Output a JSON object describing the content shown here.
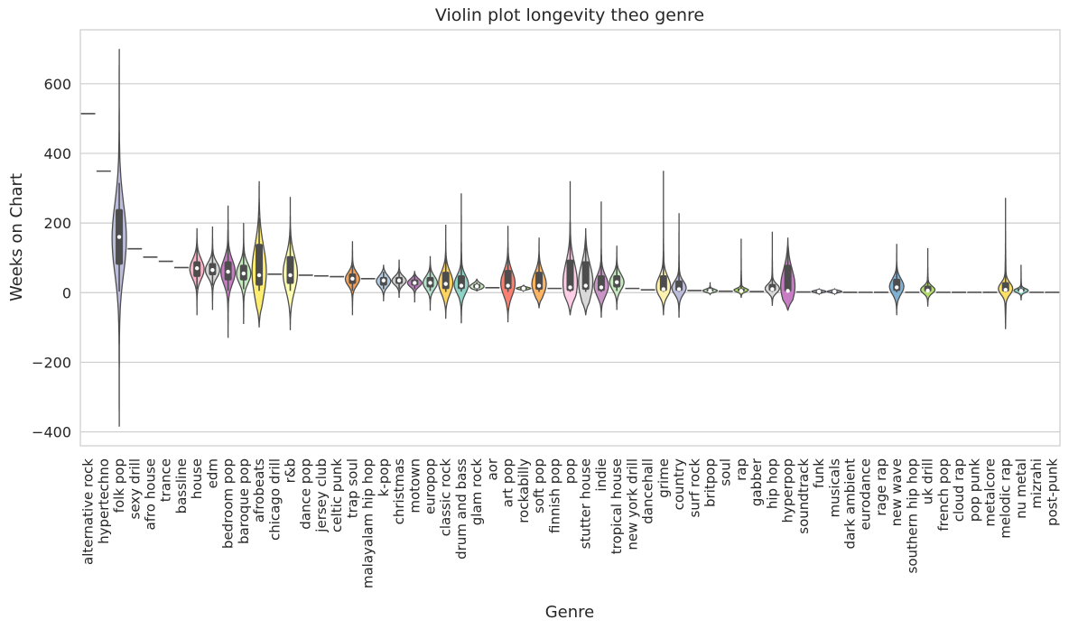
{
  "chart_data": {
    "type": "violin",
    "title": "Violin plot longevity theo genre",
    "xlabel": "Genre",
    "ylabel": "Weeks on Chart",
    "ylim": [
      -440,
      755
    ],
    "yticks": [
      -400,
      -200,
      0,
      200,
      400,
      600
    ],
    "grid": "horizontal",
    "legend": "none",
    "genres": [
      {
        "name": "alternative rock",
        "min": 514,
        "q1": 514,
        "median": 514,
        "q3": 514,
        "max": 514,
        "color": "#66c2a5"
      },
      {
        "name": "hypertechno",
        "min": 349,
        "q1": 349,
        "median": 349,
        "q3": 349,
        "max": 349,
        "color": "#fc8d62"
      },
      {
        "name": "folk pop",
        "min": 3,
        "q1": 80,
        "median": 160,
        "q3": 240,
        "max": 315,
        "lower": -385,
        "upper": 700,
        "color": "#bcbddc"
      },
      {
        "name": "sexy drill",
        "min": 126,
        "q1": 126,
        "median": 126,
        "q3": 126,
        "max": 126,
        "color": "#e78ac3"
      },
      {
        "name": "afro house",
        "min": 102,
        "q1": 102,
        "median": 102,
        "q3": 102,
        "max": 102,
        "color": "#a6d854"
      },
      {
        "name": "trance",
        "min": 90,
        "q1": 90,
        "median": 90,
        "q3": 90,
        "max": 90,
        "color": "#ffd92f"
      },
      {
        "name": "bassline",
        "min": 72,
        "q1": 72,
        "median": 72,
        "q3": 72,
        "max": 72,
        "color": "#e5c494"
      },
      {
        "name": "house",
        "min": 10,
        "q1": 45,
        "median": 70,
        "q3": 90,
        "max": 130,
        "lower": -65,
        "upper": 185,
        "color": "#fbb4c7"
      },
      {
        "name": "edm",
        "min": 20,
        "q1": 50,
        "median": 65,
        "q3": 85,
        "max": 120,
        "lower": -50,
        "upper": 190,
        "color": "#d9d9d9"
      },
      {
        "name": "bedroom pop",
        "min": 5,
        "q1": 35,
        "median": 60,
        "q3": 90,
        "max": 180,
        "lower": -130,
        "upper": 250,
        "color": "#c77cc4"
      },
      {
        "name": "baroque pop",
        "min": 10,
        "q1": 35,
        "median": 55,
        "q3": 80,
        "max": 140,
        "lower": -90,
        "upper": 200,
        "color": "#c7e9c0"
      },
      {
        "name": "afrobeats",
        "min": 5,
        "q1": 20,
        "median": 50,
        "q3": 140,
        "max": 215,
        "lower": -100,
        "upper": 320,
        "color": "#ffed6f"
      },
      {
        "name": "chicago drill",
        "min": 53,
        "q1": 53,
        "median": 53,
        "q3": 53,
        "max": 53,
        "color": "#e5c494"
      },
      {
        "name": "r&b",
        "min": 5,
        "q1": 25,
        "median": 50,
        "q3": 105,
        "max": 165,
        "lower": -108,
        "upper": 275,
        "color": "#ffffb3"
      },
      {
        "name": "dance pop",
        "min": 50,
        "q1": 50,
        "median": 50,
        "q3": 50,
        "max": 50,
        "color": "#b3b3b3"
      },
      {
        "name": "jersey club",
        "min": 48,
        "q1": 48,
        "median": 48,
        "q3": 48,
        "max": 48,
        "color": "#8dd3c7"
      },
      {
        "name": "celtic punk",
        "min": 46,
        "q1": 46,
        "median": 46,
        "q3": 46,
        "max": 46,
        "color": "#bebada"
      },
      {
        "name": "trap soul",
        "min": 5,
        "q1": 25,
        "median": 40,
        "q3": 55,
        "max": 80,
        "lower": -65,
        "upper": 148,
        "color": "#f4a259"
      },
      {
        "name": "malayalam hip hop",
        "min": 40,
        "q1": 40,
        "median": 40,
        "q3": 40,
        "max": 40,
        "color": "#80b1d3"
      },
      {
        "name": "k-pop",
        "min": 10,
        "q1": 20,
        "median": 35,
        "q3": 45,
        "max": 60,
        "lower": -25,
        "upper": 80,
        "color": "#b3cde3"
      },
      {
        "name": "christmas",
        "min": 10,
        "q1": 25,
        "median": 35,
        "q3": 45,
        "max": 60,
        "lower": -15,
        "upper": 95,
        "color": "#cccccc"
      },
      {
        "name": "motown",
        "min": 10,
        "q1": 20,
        "median": 28,
        "q3": 38,
        "max": 50,
        "lower": -28,
        "upper": 62,
        "color": "#bc80bd"
      },
      {
        "name": "europop",
        "min": 5,
        "q1": 15,
        "median": 28,
        "q3": 45,
        "max": 80,
        "lower": -52,
        "upper": 105,
        "color": "#b3e2cd"
      },
      {
        "name": "classic rock",
        "min": 2,
        "q1": 10,
        "median": 25,
        "q3": 60,
        "max": 115,
        "lower": -75,
        "upper": 195,
        "color": "#fdd462"
      },
      {
        "name": "drum and bass",
        "min": 3,
        "q1": 10,
        "median": 20,
        "q3": 50,
        "max": 110,
        "lower": -88,
        "upper": 285,
        "color": "#8dd3c7"
      },
      {
        "name": "glam rock",
        "min": 5,
        "q1": 12,
        "median": 18,
        "q3": 25,
        "max": 30,
        "lower": 5,
        "upper": 40,
        "color": "#ccebc5"
      },
      {
        "name": "aor",
        "min": 14,
        "q1": 14,
        "median": 14,
        "q3": 14,
        "max": 14,
        "color": "#e5d8bd"
      },
      {
        "name": "art pop",
        "min": 2,
        "q1": 10,
        "median": 20,
        "q3": 65,
        "max": 130,
        "lower": -85,
        "upper": 192,
        "color": "#fb8072"
      },
      {
        "name": "rockabilly",
        "min": 8,
        "q1": 10,
        "median": 12,
        "q3": 15,
        "max": 18,
        "lower": 5,
        "upper": 22,
        "color": "#b3de69"
      },
      {
        "name": "soft pop",
        "min": 2,
        "q1": 8,
        "median": 20,
        "q3": 60,
        "max": 110,
        "lower": -45,
        "upper": 158,
        "color": "#fdb462"
      },
      {
        "name": "finnish pop",
        "min": 12,
        "q1": 12,
        "median": 12,
        "q3": 12,
        "max": 12,
        "color": "#d9d9d9"
      },
      {
        "name": "pop",
        "min": 2,
        "q1": 5,
        "median": 15,
        "q3": 95,
        "max": 200,
        "lower": -65,
        "upper": 320,
        "color": "#fccde5"
      },
      {
        "name": "stutter house",
        "min": 2,
        "q1": 8,
        "median": 20,
        "q3": 90,
        "max": 150,
        "lower": -65,
        "upper": 185,
        "color": "#d9d9d9"
      },
      {
        "name": "indie",
        "min": 2,
        "q1": 5,
        "median": 15,
        "q3": 50,
        "max": 110,
        "lower": -72,
        "upper": 262,
        "color": "#c994c7"
      },
      {
        "name": "tropical house",
        "min": 5,
        "q1": 15,
        "median": 30,
        "q3": 50,
        "max": 90,
        "lower": -50,
        "upper": 135,
        "color": "#c7e9c0"
      },
      {
        "name": "new york drill",
        "min": 12,
        "q1": 12,
        "median": 12,
        "q3": 12,
        "max": 12,
        "color": "#bc80bd"
      },
      {
        "name": "dancehall",
        "min": 8,
        "q1": 8,
        "median": 8,
        "q3": 8,
        "max": 8,
        "color": "#ccebc5"
      },
      {
        "name": "grime",
        "min": 2,
        "q1": 5,
        "median": 10,
        "q3": 50,
        "max": 120,
        "lower": -65,
        "upper": 350,
        "color": "#fff2ae"
      },
      {
        "name": "country",
        "min": 2,
        "q1": 5,
        "median": 10,
        "q3": 35,
        "max": 70,
        "lower": -72,
        "upper": 228,
        "color": "#bcbddc"
      },
      {
        "name": "surf rock",
        "min": 6,
        "q1": 6,
        "median": 6,
        "q3": 6,
        "max": 6,
        "color": "#9ecae1"
      },
      {
        "name": "britpop",
        "min": 2,
        "q1": 3,
        "median": 5,
        "q3": 10,
        "max": 20,
        "lower": -5,
        "upper": 30,
        "color": "#c7e9c0"
      },
      {
        "name": "soul",
        "min": 4,
        "q1": 4,
        "median": 4,
        "q3": 4,
        "max": 4,
        "color": "#8dd3c7"
      },
      {
        "name": "rap",
        "min": 1,
        "q1": 3,
        "median": 5,
        "q3": 12,
        "max": 25,
        "lower": -15,
        "upper": 155,
        "color": "#b3de69"
      },
      {
        "name": "gabber",
        "min": 3,
        "q1": 3,
        "median": 3,
        "q3": 3,
        "max": 3,
        "color": "#fdb462"
      },
      {
        "name": "hip hop",
        "min": 2,
        "q1": 5,
        "median": 10,
        "q3": 25,
        "max": 50,
        "lower": -38,
        "upper": 175,
        "color": "#d9d9d9"
      },
      {
        "name": "hyperpop",
        "min": 1,
        "q1": 3,
        "median": 5,
        "q3": 80,
        "max": 130,
        "lower": -52,
        "upper": 158,
        "color": "#c77cc4"
      },
      {
        "name": "soundtrack",
        "min": 2,
        "q1": 2,
        "median": 2,
        "q3": 2,
        "max": 2,
        "color": "#e5c494"
      },
      {
        "name": "funk",
        "min": 1,
        "q1": 2,
        "median": 3,
        "q3": 5,
        "max": 8,
        "lower": -4,
        "upper": 10,
        "color": "#bebada"
      },
      {
        "name": "musicals",
        "min": 1,
        "q1": 2,
        "median": 3,
        "q3": 5,
        "max": 8,
        "lower": -4,
        "upper": 10,
        "color": "#bebada"
      },
      {
        "name": "dark ambient",
        "min": 1,
        "q1": 1,
        "median": 1,
        "q3": 1,
        "max": 1,
        "color": "#80b1d3"
      },
      {
        "name": "eurodance",
        "min": 1,
        "q1": 1,
        "median": 1,
        "q3": 1,
        "max": 1,
        "color": "#fb8072"
      },
      {
        "name": "rage rap",
        "min": 1,
        "q1": 1,
        "median": 1,
        "q3": 1,
        "max": 1,
        "color": "#8dd3c7"
      },
      {
        "name": "new wave",
        "min": 1,
        "q1": 5,
        "median": 15,
        "q3": 40,
        "max": 80,
        "lower": -65,
        "upper": 140,
        "color": "#80b1d3"
      },
      {
        "name": "southern hip hop",
        "min": 1,
        "q1": 1,
        "median": 1,
        "q3": 1,
        "max": 1,
        "color": "#fccde5"
      },
      {
        "name": "uk drill",
        "min": 1,
        "q1": 3,
        "median": 6,
        "q3": 20,
        "max": 45,
        "lower": -40,
        "upper": 128,
        "color": "#b3de69"
      },
      {
        "name": "french pop",
        "min": 1,
        "q1": 1,
        "median": 1,
        "q3": 1,
        "max": 1,
        "color": "#ffed6f"
      },
      {
        "name": "cloud rap",
        "min": 1,
        "q1": 1,
        "median": 1,
        "q3": 1,
        "max": 1,
        "color": "#d9d9d9"
      },
      {
        "name": "pop punk",
        "min": 1,
        "q1": 1,
        "median": 1,
        "q3": 1,
        "max": 1,
        "color": "#bc80bd"
      },
      {
        "name": "metalcore",
        "min": 1,
        "q1": 1,
        "median": 1,
        "q3": 1,
        "max": 1,
        "lower": -3,
        "upper": 4,
        "color": "#fbb4ae"
      },
      {
        "name": "melodic rap",
        "min": 1,
        "q1": 3,
        "median": 8,
        "q3": 30,
        "max": 90,
        "lower": -105,
        "upper": 272,
        "color": "#ffe066"
      },
      {
        "name": "nu metal",
        "min": 1,
        "q1": 3,
        "median": 5,
        "q3": 12,
        "max": 25,
        "lower": -22,
        "upper": 80,
        "color": "#8dd3c7"
      },
      {
        "name": "mizrahi",
        "min": 1,
        "q1": 1,
        "median": 1,
        "q3": 1,
        "max": 1,
        "color": "#ccebc5"
      },
      {
        "name": "post-punk",
        "min": 1,
        "q1": 1,
        "median": 1,
        "q3": 1,
        "max": 1,
        "color": "#c7e9c0"
      }
    ]
  }
}
